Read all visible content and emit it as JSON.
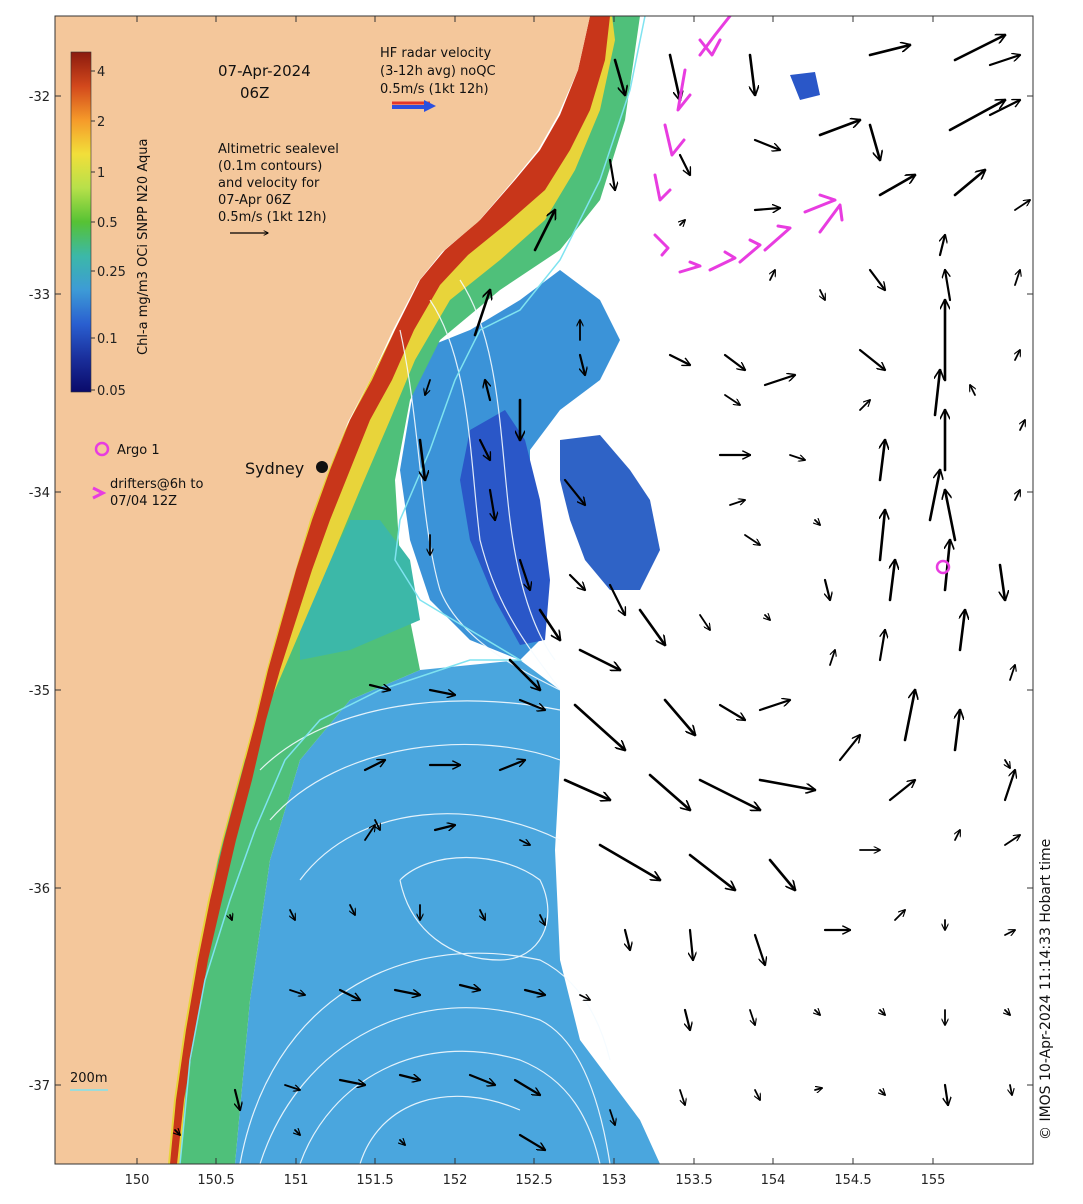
{
  "map": {
    "date": "07-Apr-2024",
    "hour": "06Z",
    "colorbar": {
      "label": "Chl-a mg/m3 OCi SNPP N20 Aqua",
      "ticks": [
        "4",
        "2",
        "1",
        "0.5",
        "0.25",
        "0.1",
        "0.05"
      ],
      "colors": [
        "#8b1a0e",
        "#d2481c",
        "#f59a2a",
        "#f2df3a",
        "#b7e04a",
        "#56c234",
        "#3cb8a8",
        "#3d9bd6",
        "#2a5fd0",
        "#1a2f9c",
        "#0a0a6a"
      ]
    },
    "hf_radar": {
      "line1": "HF radar velocity",
      "line2": "(3-12h avg) noQC",
      "line3": "0.5m/s (1kt 12h)"
    },
    "altimetry": {
      "line1": "Altimetric sealevel",
      "line2": "(0.1m contours)",
      "line3": "and velocity for",
      "line4": "07-Apr 06Z",
      "line5": "0.5m/s (1kt 12h)"
    },
    "legend": {
      "argo": "Argo 1",
      "drifters_line1": "drifters@6h to",
      "drifters_line2": "07/04 12Z"
    },
    "city": "Sydney",
    "depth_contour_label": "200m",
    "credit": "© IMOS 10-Apr-2024 11:14:33 Hobart time",
    "x_ticks": [
      "150",
      "150.5",
      "151",
      "151.5",
      "152",
      "152.5",
      "153",
      "153.5",
      "154",
      "154.5",
      "155"
    ],
    "y_ticks": [
      "-32",
      "-33",
      "-34",
      "-35",
      "-36",
      "-37"
    ],
    "colors": {
      "land": "#f4c79b",
      "ocean_no_data": "#ffffff",
      "shelf_water": "#4fc07a",
      "offshore_water": "#4aa6de",
      "eddy_core": "#2a57c8",
      "drifter": "#e83ce0",
      "argo": "#e83ce0",
      "sealevel_contour": "#f4fbff",
      "depth_contour": "#7fe3f0",
      "velocity_arrow": "#000000",
      "hf_radar_arrow": "#2b4fe0"
    }
  }
}
